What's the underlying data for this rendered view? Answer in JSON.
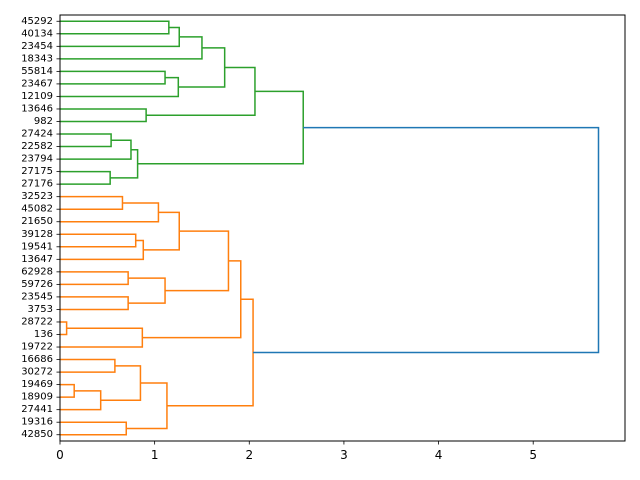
{
  "chart_data": {
    "type": "dendrogram",
    "orientation": "horizontal",
    "xlim": [
      0,
      5.97
    ],
    "x_ticks": [
      0,
      1,
      2,
      3,
      4,
      5
    ],
    "leaves": [
      "45292",
      "40134",
      "23454",
      "18343",
      "55814",
      "23467",
      "12109",
      "13646",
      "982",
      "27424",
      "22582",
      "23794",
      "27175",
      "27176",
      "32523",
      "45082",
      "21650",
      "39128",
      "19541",
      "13647",
      "62928",
      "59726",
      "23545",
      "3753",
      "28722",
      "136",
      "19722",
      "16686",
      "30272",
      "19469",
      "18909",
      "27441",
      "19316",
      "42850"
    ],
    "colors": {
      "cluster_green": "#2ca02c",
      "cluster_orange": "#ff7f0e",
      "root": "#1f77b4"
    },
    "merges": [
      {
        "children": [
          "L0",
          "L1"
        ],
        "height": 1.15,
        "color": "cluster_green"
      },
      {
        "children": [
          "M0",
          "L2"
        ],
        "height": 1.26,
        "color": "cluster_green"
      },
      {
        "children": [
          "M1",
          "L3"
        ],
        "height": 1.5,
        "color": "cluster_green"
      },
      {
        "children": [
          "L4",
          "L5"
        ],
        "height": 1.11,
        "color": "cluster_green"
      },
      {
        "children": [
          "M3",
          "L6"
        ],
        "height": 1.25,
        "color": "cluster_green"
      },
      {
        "children": [
          "M2",
          "M4"
        ],
        "height": 1.74,
        "color": "cluster_green"
      },
      {
        "children": [
          "L7",
          "L8"
        ],
        "height": 0.91,
        "color": "cluster_green"
      },
      {
        "children": [
          "M5",
          "M6"
        ],
        "height": 2.06,
        "color": "cluster_green"
      },
      {
        "children": [
          "L9",
          "L10"
        ],
        "height": 0.54,
        "color": "cluster_green"
      },
      {
        "children": [
          "M8",
          "L11"
        ],
        "height": 0.75,
        "color": "cluster_green"
      },
      {
        "children": [
          "L12",
          "L13"
        ],
        "height": 0.53,
        "color": "cluster_green"
      },
      {
        "children": [
          "M9",
          "M10"
        ],
        "height": 0.82,
        "color": "cluster_green"
      },
      {
        "children": [
          "M7",
          "M11"
        ],
        "height": 2.57,
        "color": "cluster_green"
      },
      {
        "children": [
          "L14",
          "L15"
        ],
        "height": 0.66,
        "color": "cluster_orange"
      },
      {
        "children": [
          "M13",
          "L16"
        ],
        "height": 1.04,
        "color": "cluster_orange"
      },
      {
        "children": [
          "L17",
          "L18"
        ],
        "height": 0.8,
        "color": "cluster_orange"
      },
      {
        "children": [
          "M15",
          "L19"
        ],
        "height": 0.88,
        "color": "cluster_orange"
      },
      {
        "children": [
          "M14",
          "M16"
        ],
        "height": 1.26,
        "color": "cluster_orange"
      },
      {
        "children": [
          "L20",
          "L21"
        ],
        "height": 0.72,
        "color": "cluster_orange"
      },
      {
        "children": [
          "L22",
          "L23"
        ],
        "height": 0.72,
        "color": "cluster_orange"
      },
      {
        "children": [
          "M18",
          "M19"
        ],
        "height": 1.11,
        "color": "cluster_orange"
      },
      {
        "children": [
          "M17",
          "M20"
        ],
        "height": 1.78,
        "color": "cluster_orange"
      },
      {
        "children": [
          "L24",
          "L25"
        ],
        "height": 0.07,
        "color": "cluster_orange"
      },
      {
        "children": [
          "M22",
          "L26"
        ],
        "height": 0.87,
        "color": "cluster_orange"
      },
      {
        "children": [
          "M21",
          "M23"
        ],
        "height": 1.91,
        "color": "cluster_orange"
      },
      {
        "children": [
          "L27",
          "L28"
        ],
        "height": 0.58,
        "color": "cluster_orange"
      },
      {
        "children": [
          "L29",
          "L30"
        ],
        "height": 0.15,
        "color": "cluster_orange"
      },
      {
        "children": [
          "M26",
          "L31"
        ],
        "height": 0.43,
        "color": "cluster_orange"
      },
      {
        "children": [
          "M25",
          "M27"
        ],
        "height": 0.85,
        "color": "cluster_orange"
      },
      {
        "children": [
          "L32",
          "L33"
        ],
        "height": 0.7,
        "color": "cluster_orange"
      },
      {
        "children": [
          "M28",
          "M29"
        ],
        "height": 1.13,
        "color": "cluster_orange"
      },
      {
        "children": [
          "M24",
          "M30"
        ],
        "height": 2.04,
        "color": "cluster_orange"
      },
      {
        "children": [
          "M12",
          "M31"
        ],
        "height": 5.69,
        "color": "root"
      }
    ],
    "grid": false
  }
}
